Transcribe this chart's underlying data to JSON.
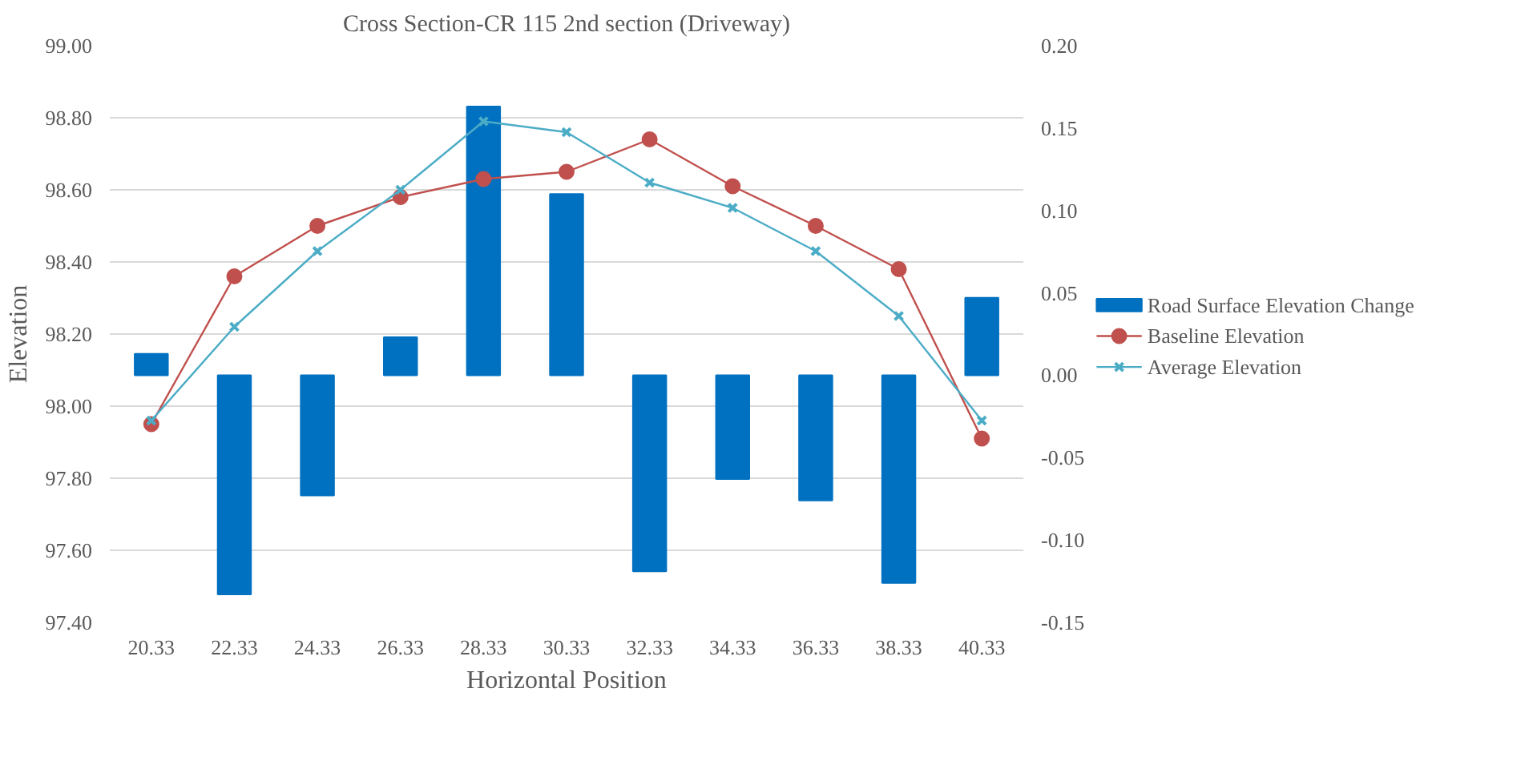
{
  "chart_data": {
    "type": "line",
    "title": "Cross Section-CR 115 2nd section (Driveway)",
    "xlabel": "Horizontal Position",
    "ylabel": "Elevation",
    "categories": [
      "20.33",
      "22.33",
      "24.33",
      "26.33",
      "28.33",
      "30.33",
      "32.33",
      "34.33",
      "36.33",
      "38.33",
      "40.33"
    ],
    "series": [
      {
        "name": "Road Surface Elevation Change",
        "type": "bar",
        "axis": "y2",
        "color": "#0070c0",
        "values": [
          0.013,
          -0.133,
          -0.073,
          0.023,
          0.163,
          0.11,
          -0.119,
          -0.063,
          -0.076,
          -0.126,
          0.047
        ]
      },
      {
        "name": "Baseline Elevation",
        "marker": "circle",
        "color": "#c0504d",
        "values": [
          97.95,
          98.36,
          98.5,
          98.58,
          98.63,
          98.65,
          98.74,
          98.61,
          98.5,
          98.38,
          97.91
        ]
      },
      {
        "name": "Average Elevation",
        "marker": "cross",
        "color": "#4bacc6",
        "values": [
          97.96,
          98.22,
          98.43,
          98.6,
          98.79,
          98.76,
          98.62,
          98.55,
          98.43,
          98.25,
          97.96
        ]
      }
    ],
    "ylim": [
      97.4,
      99.0
    ],
    "yticks": [
      {
        "value": 97.4,
        "label": "97.40"
      },
      {
        "value": 97.6,
        "label": "97.60"
      },
      {
        "value": 97.8,
        "label": "97.80"
      },
      {
        "value": 98.0,
        "label": "98.00"
      },
      {
        "value": 98.2,
        "label": "98.20"
      },
      {
        "value": 98.4,
        "label": "98.40"
      },
      {
        "value": 98.6,
        "label": "98.60"
      },
      {
        "value": 98.8,
        "label": "98.80"
      },
      {
        "value": 99.0,
        "label": "99.00"
      }
    ],
    "y2lim": [
      -0.15,
      0.2
    ],
    "y2ticks": [
      {
        "value": -0.15,
        "label": "-0.15"
      },
      {
        "value": -0.1,
        "label": "-0.10"
      },
      {
        "value": -0.05,
        "label": "-0.05"
      },
      {
        "value": 0,
        "label": "0.00"
      },
      {
        "value": 0.05,
        "label": "0.05"
      },
      {
        "value": 0.1,
        "label": "0.10"
      },
      {
        "value": 0.15,
        "label": "0.15"
      },
      {
        "value": 0.2,
        "label": "0.20"
      }
    ],
    "grid": "y",
    "legend": "right",
    "line_style": "solid"
  }
}
